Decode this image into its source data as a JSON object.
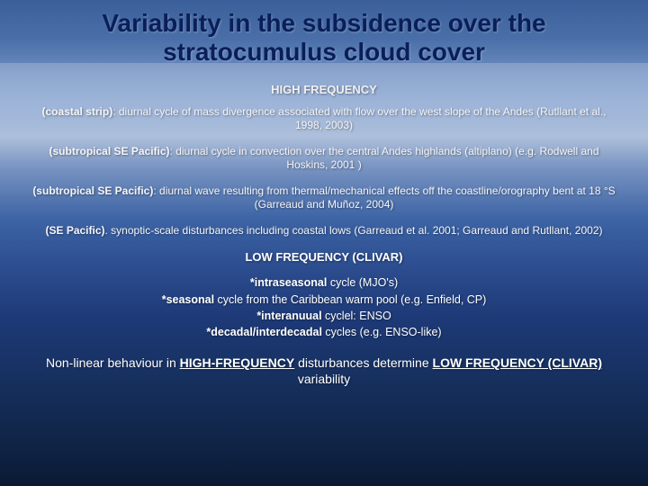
{
  "title": "Variability in the subsidence over the stratocumulus cloud cover",
  "high_freq_head": "HIGH FREQUENCY",
  "items": {
    "hf1_lead": "(coastal strip)",
    "hf1_body": ": diurnal cycle of mass divergence associated with flow over the west slope of the Andes (Rutllant et al., 1998, 2003)",
    "hf2_lead": "(subtropical SE Pacific)",
    "hf2_body": ": diurnal cycle in convection over the central Andes highlands (altiplano) (e.g. Rodwell and Hoskins, 2001 )",
    "hf3_lead": "(subtropical SE Pacific)",
    "hf3_body": ": diurnal wave resulting from thermal/mechanical effects off the coastline/orography bent at 18 °S (Garreaud and Muñoz, 2004)",
    "hf4_lead": "(SE Pacific)",
    "hf4_body": ". synoptic-scale disturbances including coastal lows (Garreaud et al. 2001; Garreaud and Rutllant, 2002)"
  },
  "low_freq_head": "LOW FREQUENCY (CLIVAR)",
  "low": {
    "l1a": "*intraseasonal",
    "l1b": " cycle (MJO's)",
    "l2a": "*seasonal",
    "l2b": " cycle from the Caribbean warm pool  (e.g. Enfield, CP)",
    "l3a": "*interanuual",
    "l3b": " cyclel: ENSO",
    "l4a": "*decadal/interdecadal",
    "l4b": " cycles  (e.g. ENSO-like)"
  },
  "closing": {
    "pre": "Non-linear behaviour in ",
    "u1": "HIGH-FREQUENCY",
    "mid": " disturbances determine ",
    "u2": "LOW FREQUENCY (CLIVAR)",
    "post": "  variability"
  },
  "colors": {
    "title": "#0a1f5a",
    "body_text": "#f5f5f7"
  }
}
